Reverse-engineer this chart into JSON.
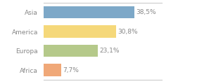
{
  "categories": [
    "Africa",
    "Europa",
    "America",
    "Asia"
  ],
  "values": [
    7.7,
    23.1,
    30.8,
    38.5
  ],
  "labels": [
    "7,7%",
    "23,1%",
    "30,8%",
    "38,5%"
  ],
  "bar_colors": [
    "#f0a878",
    "#b5c98a",
    "#f5d87a",
    "#7da8c8"
  ],
  "background_color": "#ffffff",
  "xlim": [
    0,
    50
  ],
  "label_fontsize": 6.5,
  "tick_fontsize": 6.5,
  "text_color": "#888888",
  "spine_color": "#cccccc"
}
